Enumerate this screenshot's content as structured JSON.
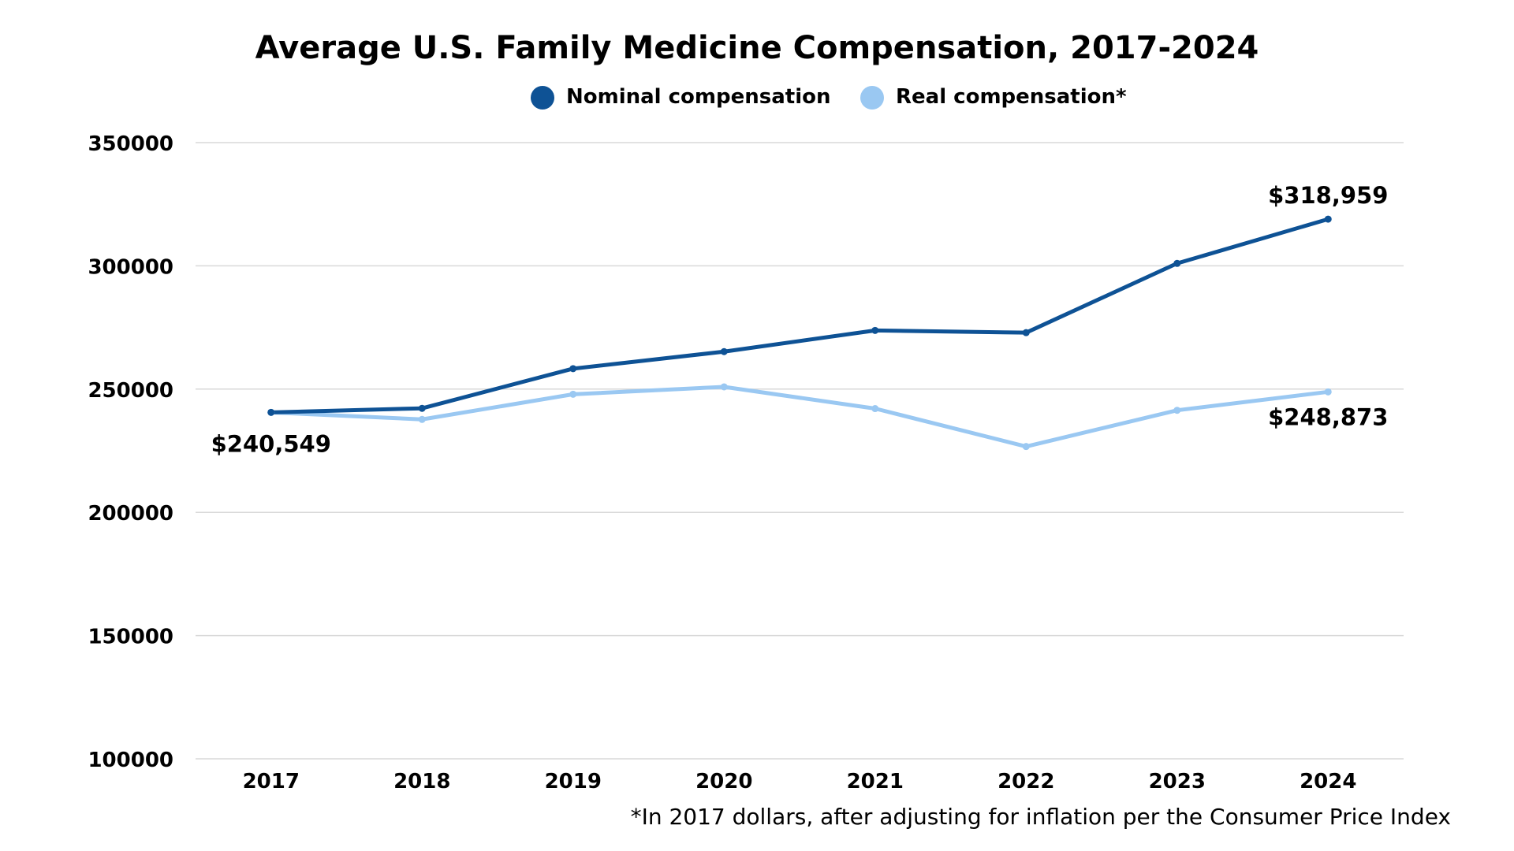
{
  "chart_data": {
    "type": "line",
    "title": "Average U.S. Family Medicine Compensation, 2017-2024",
    "xlabel": "",
    "ylabel": "",
    "categories": [
      "2017",
      "2018",
      "2019",
      "2020",
      "2021",
      "2022",
      "2023",
      "2024"
    ],
    "ylim": [
      100000,
      350000
    ],
    "yticks": [
      100000,
      150000,
      200000,
      250000,
      300000,
      350000
    ],
    "ytick_labels": [
      "100000",
      "150000",
      "200000",
      "250000",
      "300000",
      "350000"
    ],
    "grid": true,
    "legend_position": "top-center",
    "series": [
      {
        "name": "Nominal compensation",
        "color": "#0e5295",
        "values": [
          240549,
          242200,
          258300,
          265200,
          273800,
          272900,
          301000,
          318959
        ]
      },
      {
        "name": "Real compensation*",
        "color": "#9ac8f2",
        "values": [
          240549,
          237700,
          247900,
          250900,
          242100,
          226700,
          241400,
          248873
        ]
      }
    ],
    "annotations": [
      {
        "text": "$240,549",
        "series": 0,
        "category": "2017"
      },
      {
        "text": "$318,959",
        "series": 0,
        "category": "2024"
      },
      {
        "text": "$248,873",
        "series": 1,
        "category": "2024"
      }
    ],
    "footnote": "*In 2017 dollars, after adjusting for inflation per the Consumer Price Index"
  }
}
